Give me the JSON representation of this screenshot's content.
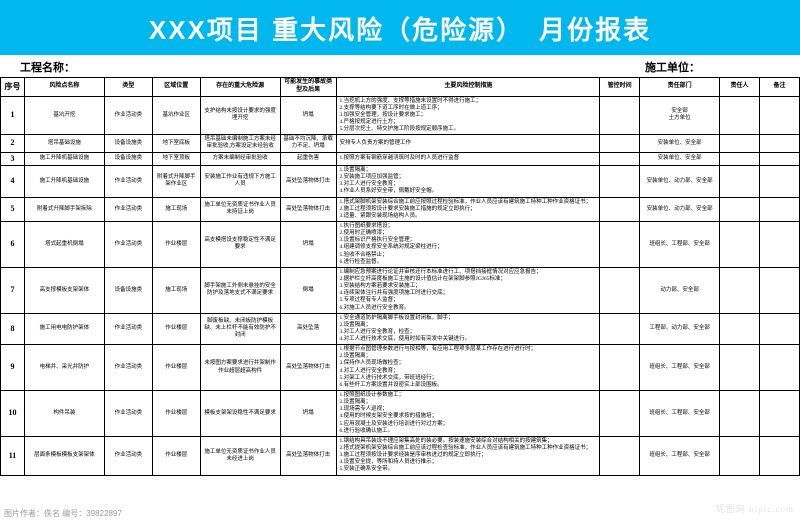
{
  "title": "XXX项目 重大风险（危险源）　月份报表",
  "sub": {
    "left_label": "工程名称：",
    "right_label": "施工单位："
  },
  "columns": [
    "序号",
    "风险点名称",
    "类型",
    "区域位置",
    "存在的重大危险源",
    "可能发生的事故类型及后果",
    "主要风险控制措施",
    "管控时间",
    "责任部门",
    "责任人",
    "备注"
  ],
  "rows": [
    {
      "seq": "1",
      "pt_name": "基坑开挖",
      "type": "作业活动类",
      "loc": "基坑作业区",
      "src": "支护结构未按设计要求的强度埋开挖",
      "acc": "坍塌",
      "meas": "1.当挖机上方的强度、支撑等措施未设置时不得进行施工；\n2.支撑等结构要下道工序时在做上道工序；\n3.加强安全管理，按设计要求施工；\n4.严格按规定进行土方；\n5.分层次挖土、特交护施工阶段按规定顺序施工。",
      "time": "",
      "dept": "安全部\n土方单位",
      "pers": "",
      "rem": ""
    },
    {
      "seq": "2",
      "pt_name": "塔吊基础设施",
      "type": "设备设施类",
      "loc": "地下室底板",
      "src": "塔吊基础未编制施工方案未经审批验收,方案设定未经验收",
      "acc": "基础不均沉降、承载力不足、坍塌",
      "meas": "安排专人负责方案的管理工作",
      "time": "",
      "dept": "安装单位、安全部",
      "pers": "",
      "rem": ""
    },
    {
      "seq": "3",
      "pt_name": "施工升降机基础设施",
      "type": "设备设施类",
      "loc": "地下室顶板",
      "src": "方案未编制经审批验收",
      "acc": "起重伤害",
      "meas": "1.按照方案有钢筋穿越浇筑时及时的人员进行监督",
      "time": "",
      "dept": "安装单位、安全部",
      "pers": "",
      "rem": ""
    },
    {
      "seq": "4",
      "pt_name": "施工升降机基础设施",
      "type": "作业活动类",
      "loc": "附着式升降脚手架作业区",
      "src": "安装施工作业有违规下方施工人员",
      "acc": "高处坠落物体打击",
      "meas": "1.设置隔离；\n2.安装施工项应加强监管；\n3.对工人进行安全教育；\n4.作业人员系好安全带，佩戴好安全帽。",
      "time": "",
      "dept": "安装单位、动力部、安全部",
      "pers": "",
      "rem": ""
    },
    {
      "seq": "5",
      "pt_name": "附着式升降脚手架拆除",
      "type": "作业活动类",
      "loc": "施工现场",
      "src": "施工单位无资质证书作业人员未持证上岗",
      "acc": "高处坠落物体打击",
      "meas": "1.搭式架脚机架安装综合施工前应按照过程检验标准，作业人员应该有建筑施工特种工种作业资格证书；\n2.施工过程须按设计要求安装施工措施的规定立即执行；\n3.适量、紧跟安装现场结构人员。",
      "time": "",
      "dept": "安装单位、动力部、安全部",
      "pers": "",
      "rem": ""
    },
    {
      "seq": "6",
      "pt_name": "塔式起重机倒塌",
      "type": "作业活动类",
      "loc": "作业楼层",
      "src": "高支模搭设支撑稳定性不满足要求",
      "acc": "坍塌",
      "meas": "1.执行图纸要求搭设；\n2.使用时正确喷漆；\n3.设置标识严格执行安全管理；\n4.组建调修支撑安全系统对规定梁柱进行；\n5.验收不合格禁止；\n6.进行检查监督。",
      "time": "",
      "dept": "班组长、工程部、安全部",
      "pers": "",
      "rem": ""
    },
    {
      "seq": "7",
      "pt_name": "高支撑模板支架架体",
      "type": "设备设施类",
      "loc": "施工现场",
      "src": "脚手架施工外侧未悬挂的安全防护及落地支式不满足要求",
      "acc": "倒塌",
      "meas": "1.编制应急预案进行论证并审核还行本标准进行工、项搭挡接框情况对应应急报告；\n2.据护栏立杆高度板施工主施的设计值估计在架架脚参照JGJ65标准；\n3.安装结构方案若要求安装施工；\n4.连续架体注行并有强度项施工时进行交底；\n5.专项过程有专人监督；\n6.对施工人员进行安全教育。",
      "time": "",
      "dept": "动力部、安全部",
      "pers": "",
      "rem": ""
    },
    {
      "seq": "8",
      "pt_name": "施工用电电防护架体",
      "type": "作业活动类",
      "loc": "作业楼层",
      "src": "脚废板缺、未闭板防护模板缺、未上栏杆不能有效防护不封闭",
      "acc": "高处坠落",
      "meas": "1.安全通道防护隔离脚手板设置封闭板，脚手；\n2.设置隔离；\n3.对工人进行安全教育，检查；\n4.对工人进行技术交底，使用时如有突发中关键进行。",
      "time": "",
      "dept": "工程部、动力部、安全部",
      "pers": "",
      "rem": ""
    },
    {
      "seq": "9",
      "pt_name": "电梯井、采光井防护",
      "type": "作业活动类",
      "loc": "作业楼层",
      "src": "未按图方案要求进行井架制作作业超层超高构件",
      "acc": "高处坠落物体打击",
      "meas": "1.根据节点图管理参数进行与按相等，有应用工程项多层某工作存在进行进行时；\n2.设置隔离；\n3.保持作人员现场做检查；\n4.对工人进行安全教育；\n5.对架工人进行技术交底，带班班经行；\n6.有些杆工方案设置并设密实上部设围板。",
      "time": "",
      "dept": "班组长、工程部、安全部",
      "pers": "",
      "rem": ""
    },
    {
      "seq": "10",
      "pt_name": "构件吊装",
      "type": "作业活动类",
      "loc": "作业楼层",
      "src": "模板支架架设稳性不满足要求",
      "acc": "坍塌",
      "meas": "1.按照图纸设计参数施工；\n2.设置隔离；\n3.现场需专人巡视；\n4.使用的时候支架安全要求按的措施培；\n5.应用混凝土及安装进行培训进行对过方案；\n6.进行验收确认施工。",
      "time": "",
      "dept": "班组长、工程部、安全部",
      "pers": "",
      "rem": ""
    },
    {
      "seq": "11",
      "pt_name": "层面条模板模板支架架体",
      "type": "作业活动类",
      "loc": "作业楼层",
      "src": "施工单位无资质证书作业人员未经进上岗",
      "acc": "高处坠落物体打击",
      "meas": "1.钢结构具吊装设不理应架集高处的装必要。按装速施安装综合对结构相关的按建筑集；\n2.搭式提架机架安装综合施工前应该过程检查验标准，作业人员应该有建筑施工特种工种作业资格证书；\n3.施工过程须按设计要求经装是序审核进过的规定立即执行；\n4.设置安全提，等所和持人员进行推示；\n5.安装正确系安全带。",
      "time": "",
      "dept": "班组长、工程部、安全部",
      "pers": "",
      "rem": ""
    }
  ],
  "footer": "图片作者：佚名   编号：39822897",
  "watermark": "昵图网 nipic.com"
}
